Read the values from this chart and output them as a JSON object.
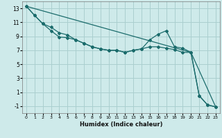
{
  "xlabel": "Humidex (Indice chaleur)",
  "background_color": "#ceeaea",
  "grid_color": "#aacfcf",
  "line_color": "#1a6b6b",
  "xlim": [
    -0.5,
    23.5
  ],
  "ylim": [
    -2.0,
    14.0
  ],
  "xticks": [
    0,
    1,
    2,
    3,
    4,
    5,
    6,
    7,
    8,
    9,
    10,
    11,
    12,
    13,
    14,
    15,
    16,
    17,
    18,
    19,
    20,
    21,
    22,
    23
  ],
  "yticks": [
    -1,
    1,
    3,
    5,
    7,
    9,
    11,
    13
  ],
  "line1_x": [
    0,
    1,
    2,
    3,
    4,
    5,
    6,
    7,
    8,
    9,
    10,
    11,
    12,
    13,
    14,
    15,
    16,
    17,
    18,
    19,
    20,
    21,
    22,
    23
  ],
  "line1_y": [
    13.3,
    12.0,
    10.8,
    10.3,
    9.5,
    9.2,
    8.5,
    8.0,
    7.5,
    7.2,
    7.0,
    7.0,
    6.7,
    7.0,
    7.2,
    8.5,
    9.3,
    9.8,
    7.5,
    7.3,
    6.7,
    0.5,
    -0.8,
    -1.1
  ],
  "line2_x": [
    0,
    1,
    2,
    3,
    4,
    5,
    6,
    7,
    8,
    9,
    10,
    11,
    12,
    13,
    14,
    15,
    16,
    17,
    18,
    19,
    20,
    21,
    22,
    23
  ],
  "line2_y": [
    13.3,
    12.0,
    10.8,
    9.8,
    8.9,
    8.8,
    8.5,
    8.0,
    7.5,
    7.2,
    7.0,
    7.0,
    6.7,
    7.0,
    7.2,
    7.5,
    7.5,
    7.3,
    7.1,
    6.7,
    6.7,
    0.5,
    -0.8,
    -1.1
  ],
  "line3_x": [
    0,
    20,
    23
  ],
  "line3_y": [
    13.3,
    6.7,
    -1.1
  ]
}
